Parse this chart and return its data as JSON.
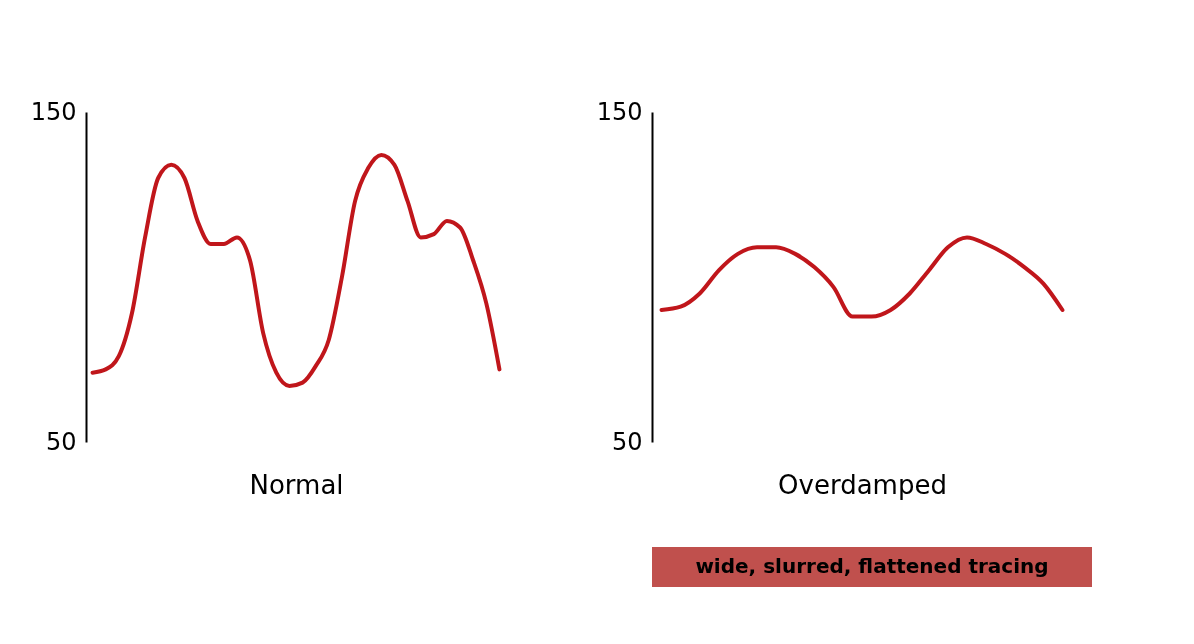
{
  "chart_data": [
    {
      "type": "line",
      "xlabel": "Normal",
      "categories": [
        null,
        null,
        null,
        null,
        null,
        null,
        null,
        null,
        null,
        null,
        null,
        null,
        null,
        null,
        null,
        null,
        null,
        null,
        null,
        null,
        null,
        null,
        null,
        null,
        null,
        null,
        null,
        null,
        null,
        null,
        null,
        null
      ],
      "series": [
        {
          "color": "#c0161b",
          "values": [
            71,
            72,
            76,
            89,
            112,
            130,
            134,
            130,
            117,
            110,
            110,
            112,
            105,
            83,
            71,
            67,
            68,
            73,
            81,
            100,
            123,
            133,
            137,
            134,
            123,
            112,
            113,
            117,
            115,
            105,
            92,
            72
          ]
        }
      ],
      "ylim": [
        50,
        150
      ],
      "yticks": [
        50,
        150
      ],
      "grid": false,
      "tick_labels": "y",
      "marker": "none",
      "line_style": "solid"
    },
    {
      "type": "line",
      "xlabel": "Overdamped",
      "categories": [
        null,
        null,
        null,
        null,
        null,
        null,
        null,
        null,
        null,
        null,
        null,
        null,
        null,
        null,
        null,
        null,
        null,
        null,
        null,
        null,
        null,
        null
      ],
      "series": [
        {
          "color": "#c0161b",
          "values": [
            90,
            91,
            95,
            102,
            107,
            109,
            109,
            107,
            103,
            97,
            88,
            88,
            90,
            95,
            102,
            109,
            112,
            110,
            107,
            103,
            98,
            90
          ]
        }
      ],
      "ylim": [
        50,
        150
      ],
      "yticks": [
        50,
        150
      ],
      "grid": false,
      "tick_labels": "y",
      "marker": "none",
      "line_style": "solid",
      "annotations": [
        "wide, slurred, flattened tracing"
      ]
    }
  ]
}
